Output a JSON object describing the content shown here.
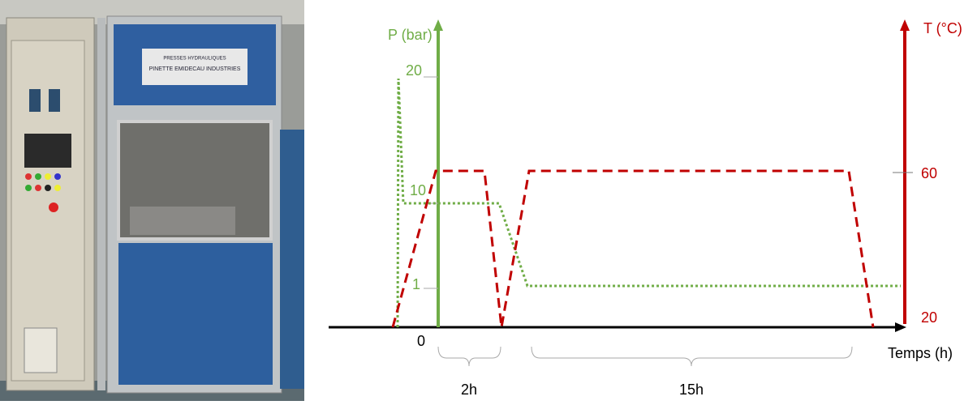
{
  "photo": {
    "plate_line1": "PRESSES HYDRAULIQUES",
    "plate_line2": "PINETTE EMIDECAU INDUSTRIES"
  },
  "diagram": {
    "pressure_axis": {
      "title": "P (bar)",
      "ticks": [
        "20",
        "10",
        "1"
      ]
    },
    "temperature_axis": {
      "title": "T (°C)",
      "ticks": [
        "60",
        "20"
      ]
    },
    "time_axis": {
      "title": "Temps (h)",
      "origin": "0"
    },
    "durations": [
      "2h",
      "15h"
    ]
  }
}
